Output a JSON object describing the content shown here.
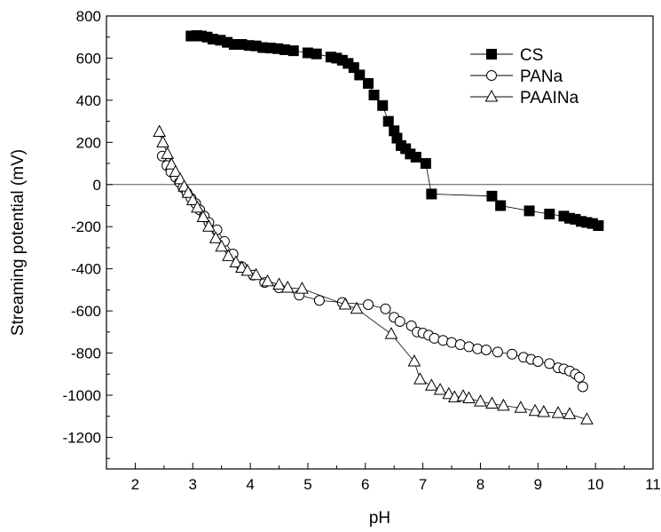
{
  "chart_data": {
    "type": "scatter",
    "xlabel": "pH",
    "ylabel": "Streaming potential (mV)",
    "xlim": [
      1.5,
      11
    ],
    "ylim": [
      -1350,
      800
    ],
    "xticks": [
      "2",
      "3",
      "4",
      "5",
      "6",
      "7",
      "8",
      "9",
      "10",
      "11"
    ],
    "yticks": [
      "800",
      "600",
      "400",
      "200",
      "0",
      "-200",
      "-400",
      "-600",
      "-800",
      "-1000",
      "-1200"
    ],
    "zero_line": true,
    "grid": false,
    "legend_position": "top-right",
    "series": [
      {
        "name": "CS",
        "marker": "filled-square",
        "x": [
          2.97,
          3.07,
          3.15,
          3.25,
          3.35,
          3.48,
          3.6,
          3.72,
          3.85,
          3.98,
          4.1,
          4.22,
          4.35,
          4.48,
          4.6,
          4.75,
          5.0,
          5.15,
          5.4,
          5.5,
          5.6,
          5.7,
          5.8,
          5.9,
          6.05,
          6.15,
          6.3,
          6.4,
          6.5,
          6.55,
          6.62,
          6.7,
          6.78,
          6.88,
          7.05,
          7.15,
          8.2,
          8.35,
          8.85,
          9.2,
          9.45,
          9.55,
          9.65,
          9.75,
          9.85,
          9.95,
          10.05
        ],
        "y": [
          705,
          707,
          705,
          700,
          690,
          685,
          675,
          665,
          665,
          660,
          658,
          650,
          648,
          645,
          640,
          635,
          625,
          620,
          605,
          600,
          590,
          575,
          555,
          520,
          480,
          425,
          375,
          300,
          255,
          220,
          185,
          170,
          145,
          130,
          100,
          -45,
          -55,
          -100,
          -125,
          -140,
          -150,
          -160,
          -165,
          -175,
          -180,
          -185,
          -195
        ]
      },
      {
        "name": "PANa",
        "marker": "open-circle",
        "x": [
          2.47,
          2.55,
          2.62,
          2.7,
          2.77,
          2.83,
          2.9,
          2.97,
          3.05,
          3.12,
          3.2,
          3.28,
          3.42,
          3.55,
          3.7,
          3.85,
          4.05,
          4.25,
          4.5,
          4.85,
          5.2,
          5.6,
          6.05,
          6.35,
          6.5,
          6.6,
          6.8,
          6.9,
          7.0,
          7.1,
          7.2,
          7.35,
          7.5,
          7.65,
          7.8,
          7.95,
          8.1,
          8.3,
          8.55,
          8.75,
          8.88,
          9.0,
          9.2,
          9.35,
          9.45,
          9.55,
          9.65,
          9.72,
          9.78
        ],
        "y": [
          135,
          90,
          60,
          35,
          10,
          -15,
          -40,
          -65,
          -90,
          -120,
          -150,
          -180,
          -215,
          -270,
          -330,
          -390,
          -430,
          -465,
          -490,
          -525,
          -550,
          -560,
          -570,
          -590,
          -630,
          -650,
          -670,
          -700,
          -705,
          -715,
          -730,
          -740,
          -750,
          -760,
          -770,
          -780,
          -785,
          -795,
          -805,
          -820,
          -830,
          -840,
          -850,
          -870,
          -875,
          -885,
          -900,
          -915,
          -960
        ]
      },
      {
        "name": "PAAINa",
        "marker": "open-triangle",
        "x": [
          2.42,
          2.48,
          2.56,
          2.63,
          2.7,
          2.78,
          2.85,
          2.92,
          3.0,
          3.08,
          3.18,
          3.28,
          3.4,
          3.5,
          3.62,
          3.75,
          3.85,
          3.95,
          4.1,
          4.3,
          4.5,
          4.65,
          4.9,
          5.65,
          5.85,
          6.45,
          6.85,
          6.95,
          7.15,
          7.3,
          7.45,
          7.55,
          7.7,
          7.8,
          8.0,
          8.2,
          8.4,
          8.7,
          8.95,
          9.1,
          9.35,
          9.55,
          9.85
        ],
        "y": [
          250,
          200,
          145,
          95,
          60,
          25,
          -10,
          -40,
          -75,
          -110,
          -155,
          -200,
          -255,
          -295,
          -340,
          -370,
          -395,
          -410,
          -430,
          -460,
          -475,
          -490,
          -495,
          -570,
          -590,
          -710,
          -840,
          -925,
          -955,
          -975,
          -995,
          -1010,
          -1005,
          -1015,
          -1030,
          -1040,
          -1050,
          -1060,
          -1075,
          -1080,
          -1085,
          -1090,
          -1115
        ]
      }
    ]
  }
}
